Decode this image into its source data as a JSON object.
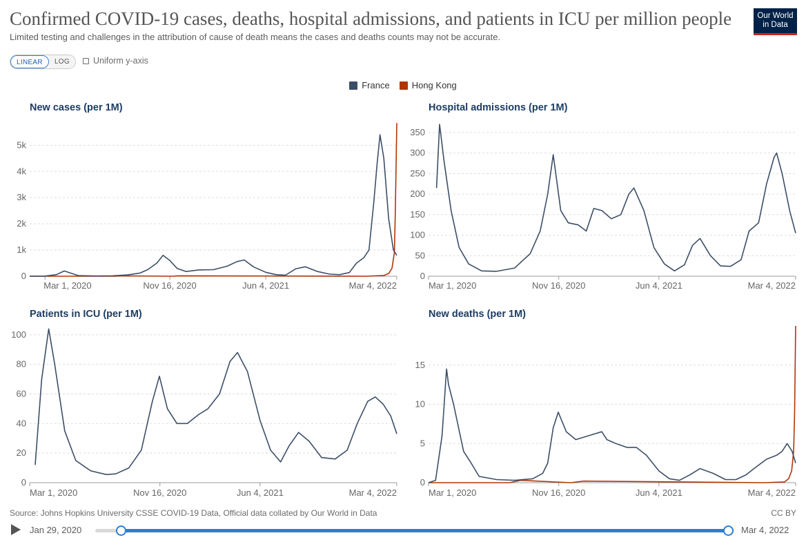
{
  "title": "Confirmed COVID-19 cases, deaths, hospital admissions, and patients in ICU per million people",
  "subtitle": "Limited testing and challenges in the attribution of cause of death means the cases and deaths counts may not be accurate.",
  "logo": {
    "line1": "Our World",
    "line2": "in Data"
  },
  "controls": {
    "linear": "LINEAR",
    "log": "LOG",
    "uniform_axis": "Uniform y-axis",
    "selected_scale": "LINEAR"
  },
  "legend": [
    {
      "name": "France",
      "color": "#3c4e66"
    },
    {
      "name": "Hong Kong",
      "color": "#b13507"
    }
  ],
  "source": "Source: Johns Hopkins University CSSE COVID-19 Data, Official data collated by Our World in Data",
  "license": "CC BY",
  "timeline": {
    "start": "Jan 29, 2020",
    "end": "Mar 4, 2022",
    "start_fraction": 0.04,
    "end_fraction": 0.99
  },
  "chart_data": [
    {
      "type": "line",
      "title": "New cases (per 1M)",
      "x_ticks": [
        "Mar 1, 2020",
        "Nov 16, 2020",
        "Jun 4, 2021",
        "Mar 4, 2022"
      ],
      "y_ticks": [
        0,
        1000,
        2000,
        3000,
        4000,
        5000
      ],
      "y_tick_labels": [
        "0",
        "1k",
        "2k",
        "3k",
        "4k",
        "5k"
      ],
      "ylim": [
        0,
        5800
      ],
      "x_domain": [
        "2020-01-29",
        "2022-03-04"
      ],
      "series": [
        {
          "name": "France",
          "x": [
            "2020-01-29",
            "2020-03-01",
            "2020-03-25",
            "2020-04-10",
            "2020-05-10",
            "2020-06-15",
            "2020-07-20",
            "2020-08-20",
            "2020-09-15",
            "2020-10-01",
            "2020-10-20",
            "2020-11-02",
            "2020-11-16",
            "2020-12-01",
            "2020-12-20",
            "2021-01-15",
            "2021-02-15",
            "2021-03-15",
            "2021-04-05",
            "2021-04-20",
            "2021-05-10",
            "2021-06-04",
            "2021-06-25",
            "2021-07-15",
            "2021-08-05",
            "2021-08-25",
            "2021-09-20",
            "2021-10-15",
            "2021-11-05",
            "2021-11-25",
            "2021-12-10",
            "2021-12-25",
            "2022-01-05",
            "2022-01-15",
            "2022-01-22",
            "2022-01-28",
            "2022-02-05",
            "2022-02-15",
            "2022-02-25",
            "2022-03-04"
          ],
          "y": [
            0,
            5,
            60,
            200,
            20,
            8,
            15,
            50,
            120,
            250,
            500,
            800,
            600,
            300,
            180,
            240,
            250,
            380,
            560,
            620,
            350,
            150,
            60,
            40,
            280,
            360,
            180,
            80,
            60,
            140,
            500,
            700,
            1000,
            2800,
            4300,
            5400,
            4500,
            2200,
            1000,
            800
          ]
        },
        {
          "name": "Hong Kong",
          "x": [
            "2020-01-29",
            "2020-07-25",
            "2020-08-05",
            "2020-11-20",
            "2020-12-05",
            "2021-12-31",
            "2022-02-05",
            "2022-02-15",
            "2022-02-22",
            "2022-02-27",
            "2022-03-01",
            "2022-03-04"
          ],
          "y": [
            0,
            0,
            15,
            0,
            15,
            0,
            30,
            100,
            300,
            900,
            2500,
            5850
          ]
        }
      ]
    },
    {
      "type": "line",
      "title": "Hospital admissions (per 1M)",
      "x_ticks": [
        "Mar 1, 2020",
        "Nov 16, 2020",
        "Jun 4, 2021",
        "Mar 4, 2022"
      ],
      "y_ticks": [
        0,
        50,
        100,
        150,
        200,
        250,
        300,
        350
      ],
      "y_tick_labels": [
        "0",
        "50",
        "100",
        "150",
        "200",
        "250",
        "300",
        "350"
      ],
      "ylim": [
        0,
        370
      ],
      "x_domain": [
        "2020-03-01",
        "2022-03-04"
      ],
      "series": [
        {
          "name": "France",
          "x": [
            "2020-03-17",
            "2020-03-23",
            "2020-04-01",
            "2020-04-15",
            "2020-05-01",
            "2020-05-20",
            "2020-06-15",
            "2020-07-15",
            "2020-08-20",
            "2020-09-20",
            "2020-10-10",
            "2020-10-25",
            "2020-11-05",
            "2020-11-20",
            "2020-12-05",
            "2020-12-25",
            "2021-01-10",
            "2021-01-25",
            "2021-02-10",
            "2021-03-01",
            "2021-03-20",
            "2021-04-05",
            "2021-04-15",
            "2021-05-05",
            "2021-05-25",
            "2021-06-15",
            "2021-07-05",
            "2021-07-25",
            "2021-08-10",
            "2021-08-25",
            "2021-09-15",
            "2021-10-05",
            "2021-10-25",
            "2021-11-15",
            "2021-12-01",
            "2021-12-20",
            "2022-01-05",
            "2022-01-20",
            "2022-01-25",
            "2022-02-05",
            "2022-02-20",
            "2022-03-04"
          ],
          "y": [
            215,
            370,
            280,
            160,
            70,
            30,
            13,
            12,
            20,
            55,
            110,
            200,
            296,
            160,
            130,
            125,
            110,
            165,
            160,
            140,
            150,
            200,
            215,
            160,
            70,
            30,
            13,
            28,
            75,
            92,
            50,
            25,
            24,
            40,
            110,
            130,
            225,
            290,
            300,
            250,
            160,
            105
          ]
        }
      ]
    },
    {
      "type": "line",
      "title": "Patients in ICU (per 1M)",
      "x_ticks": [
        "Mar 1, 2020",
        "Nov 16, 2020",
        "Jun 4, 2021",
        "Mar 4, 2022"
      ],
      "y_ticks": [
        0,
        20,
        40,
        60,
        80,
        100
      ],
      "y_tick_labels": [
        "0",
        "20",
        "40",
        "60",
        "80",
        "100"
      ],
      "ylim": [
        0,
        106
      ],
      "x_domain": [
        "2020-03-01",
        "2022-03-04"
      ],
      "series": [
        {
          "name": "France",
          "x": [
            "2020-03-12",
            "2020-03-25",
            "2020-04-08",
            "2020-04-20",
            "2020-05-10",
            "2020-06-01",
            "2020-07-01",
            "2020-08-01",
            "2020-08-20",
            "2020-09-15",
            "2020-10-10",
            "2020-11-01",
            "2020-11-15",
            "2020-12-01",
            "2020-12-20",
            "2021-01-10",
            "2021-02-01",
            "2021-02-20",
            "2021-03-15",
            "2021-04-05",
            "2021-04-20",
            "2021-05-10",
            "2021-06-04",
            "2021-06-25",
            "2021-07-15",
            "2021-08-01",
            "2021-08-20",
            "2021-09-10",
            "2021-10-05",
            "2021-11-01",
            "2021-11-25",
            "2021-12-15",
            "2022-01-05",
            "2022-01-20",
            "2022-02-05",
            "2022-02-20",
            "2022-03-04"
          ],
          "y": [
            12,
            70,
            104,
            80,
            35,
            15,
            8,
            5.5,
            6,
            10,
            22,
            55,
            72,
            50,
            40,
            40,
            46,
            50,
            60,
            82,
            88,
            75,
            42,
            22,
            14,
            25,
            34,
            28,
            17,
            16,
            22,
            40,
            55,
            58,
            53,
            45,
            33
          ]
        }
      ]
    },
    {
      "type": "line",
      "title": "New deaths (per 1M)",
      "x_ticks": [
        "Mar 1, 2020",
        "Nov 16, 2020",
        "Jun 4, 2021",
        "Mar 4, 2022"
      ],
      "y_ticks": [
        0,
        5,
        10,
        15
      ],
      "y_tick_labels": [
        "0",
        "5",
        "10",
        "15"
      ],
      "ylim": [
        0,
        20
      ],
      "x_domain": [
        "2020-03-01",
        "2022-03-04"
      ],
      "series": [
        {
          "name": "France",
          "x": [
            "2020-03-01",
            "2020-03-15",
            "2020-03-28",
            "2020-04-06",
            "2020-04-10",
            "2020-04-20",
            "2020-05-10",
            "2020-05-25",
            "2020-06-10",
            "2020-07-15",
            "2020-08-20",
            "2020-09-25",
            "2020-10-15",
            "2020-10-25",
            "2020-11-05",
            "2020-11-15",
            "2020-12-01",
            "2020-12-20",
            "2021-01-15",
            "2021-02-10",
            "2021-02-20",
            "2021-03-10",
            "2021-04-01",
            "2021-04-20",
            "2021-05-10",
            "2021-06-04",
            "2021-06-25",
            "2021-07-15",
            "2021-08-05",
            "2021-08-25",
            "2021-09-20",
            "2021-10-15",
            "2021-11-05",
            "2021-11-25",
            "2021-12-15",
            "2022-01-05",
            "2022-01-25",
            "2022-02-05",
            "2022-02-15",
            "2022-02-25",
            "2022-03-04"
          ],
          "y": [
            0,
            0.3,
            6,
            14.5,
            12.5,
            10,
            4,
            2.5,
            0.8,
            0.4,
            0.3,
            0.5,
            1.2,
            2.5,
            7,
            9,
            6.5,
            5.5,
            6,
            6.5,
            5.5,
            5,
            4.5,
            4.5,
            3.5,
            1.5,
            0.5,
            0.3,
            1,
            1.8,
            1.2,
            0.4,
            0.4,
            1,
            2,
            3,
            3.5,
            4,
            5,
            4,
            2.5
          ]
        },
        {
          "name": "Hong Kong",
          "x": [
            "2020-03-01",
            "2020-08-10",
            "2020-09-01",
            "2020-12-10",
            "2021-01-05",
            "2021-12-31",
            "2022-02-10",
            "2022-02-18",
            "2022-02-24",
            "2022-02-28",
            "2022-03-02",
            "2022-03-04"
          ],
          "y": [
            0,
            0,
            0.3,
            0,
            0.2,
            0,
            0.1,
            0.5,
            1.5,
            4,
            9,
            20
          ]
        }
      ]
    }
  ]
}
